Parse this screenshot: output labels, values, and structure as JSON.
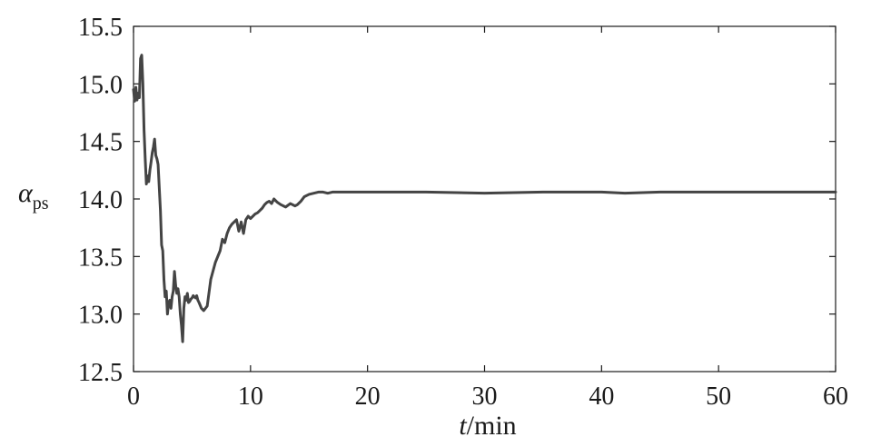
{
  "chart_data": {
    "type": "line",
    "xlabel_italic": "t",
    "xlabel_rest": "/min",
    "ylabel_main": "α",
    "ylabel_sub": "ps",
    "xlim": [
      0,
      60
    ],
    "ylim": [
      12.5,
      15.5
    ],
    "x_ticks": [
      0,
      10,
      20,
      30,
      40,
      50,
      60
    ],
    "x_tick_labels": [
      "0",
      "10",
      "20",
      "30",
      "40",
      "50",
      "60"
    ],
    "y_ticks": [
      12.5,
      13.0,
      13.5,
      14.0,
      14.5,
      15.0,
      15.5
    ],
    "y_tick_labels": [
      "12.5",
      "13.0",
      "13.5",
      "14.0",
      "14.5",
      "15.0",
      "15.5"
    ],
    "grid": false,
    "line_color": "#444444",
    "series": [
      {
        "x": [
          0,
          0.1,
          0.2,
          0.3,
          0.4,
          0.5,
          0.6,
          0.7,
          0.8,
          0.9,
          1.0,
          1.1,
          1.2,
          1.3,
          1.4,
          1.5,
          1.6,
          1.7,
          1.8,
          1.9,
          2.0,
          2.1,
          2.2,
          2.3,
          2.4,
          2.5,
          2.6,
          2.7,
          2.8,
          2.9,
          3.0,
          3.1,
          3.2,
          3.3,
          3.4,
          3.5,
          3.6,
          3.7,
          3.8,
          3.9,
          4.0,
          4.1,
          4.2,
          4.3,
          4.4,
          4.5,
          4.6,
          4.7,
          4.8,
          4.9,
          5.0,
          5.1,
          5.2,
          5.3,
          5.4,
          5.5,
          5.6,
          5.8,
          6.0,
          6.3,
          6.6,
          7.0,
          7.4,
          7.6,
          7.8,
          8.0,
          8.2,
          8.4,
          8.6,
          8.8,
          9.0,
          9.2,
          9.4,
          9.6,
          9.8,
          10.0,
          10.2,
          10.4,
          10.6,
          10.8,
          11.0,
          11.2,
          11.4,
          11.6,
          11.8,
          12.0,
          12.3,
          12.6,
          13.0,
          13.4,
          13.8,
          14.0,
          14.3,
          14.6,
          15.0,
          15.4,
          15.8,
          16.2,
          16.6,
          17.0,
          17.5,
          18.0,
          19.0,
          20.0,
          22.0,
          25.0,
          30.0,
          35.0,
          40.0,
          42.0,
          45.0,
          48.0,
          50.0,
          52.0,
          55.0,
          56.0,
          58.0,
          60.0
        ],
        "values": [
          14.95,
          14.85,
          14.97,
          14.86,
          14.92,
          14.88,
          15.22,
          15.25,
          15.0,
          14.6,
          14.35,
          14.13,
          14.2,
          14.15,
          14.25,
          14.32,
          14.4,
          14.45,
          14.52,
          14.38,
          14.35,
          14.3,
          14.1,
          13.9,
          13.6,
          13.55,
          13.3,
          13.15,
          13.2,
          13.0,
          13.1,
          13.12,
          13.05,
          13.15,
          13.2,
          13.37,
          13.25,
          13.18,
          13.22,
          13.15,
          13.0,
          12.9,
          12.76,
          13.05,
          13.15,
          13.12,
          13.18,
          13.1,
          13.11,
          13.13,
          13.14,
          13.16,
          13.15,
          13.14,
          13.16,
          13.12,
          13.1,
          13.05,
          13.03,
          13.07,
          13.3,
          13.45,
          13.55,
          13.65,
          13.62,
          13.7,
          13.75,
          13.78,
          13.8,
          13.82,
          13.72,
          13.8,
          13.7,
          13.82,
          13.85,
          13.83,
          13.85,
          13.87,
          13.88,
          13.9,
          13.92,
          13.95,
          13.97,
          13.98,
          13.96,
          14.0,
          13.97,
          13.95,
          13.93,
          13.96,
          13.94,
          13.95,
          13.98,
          14.02,
          14.04,
          14.05,
          14.06,
          14.06,
          14.05,
          14.06,
          14.06,
          14.06,
          14.06,
          14.06,
          14.06,
          14.06,
          14.05,
          14.06,
          14.06,
          14.05,
          14.06,
          14.06,
          14.06,
          14.06,
          14.06,
          14.06,
          14.06,
          14.06
        ]
      }
    ]
  }
}
